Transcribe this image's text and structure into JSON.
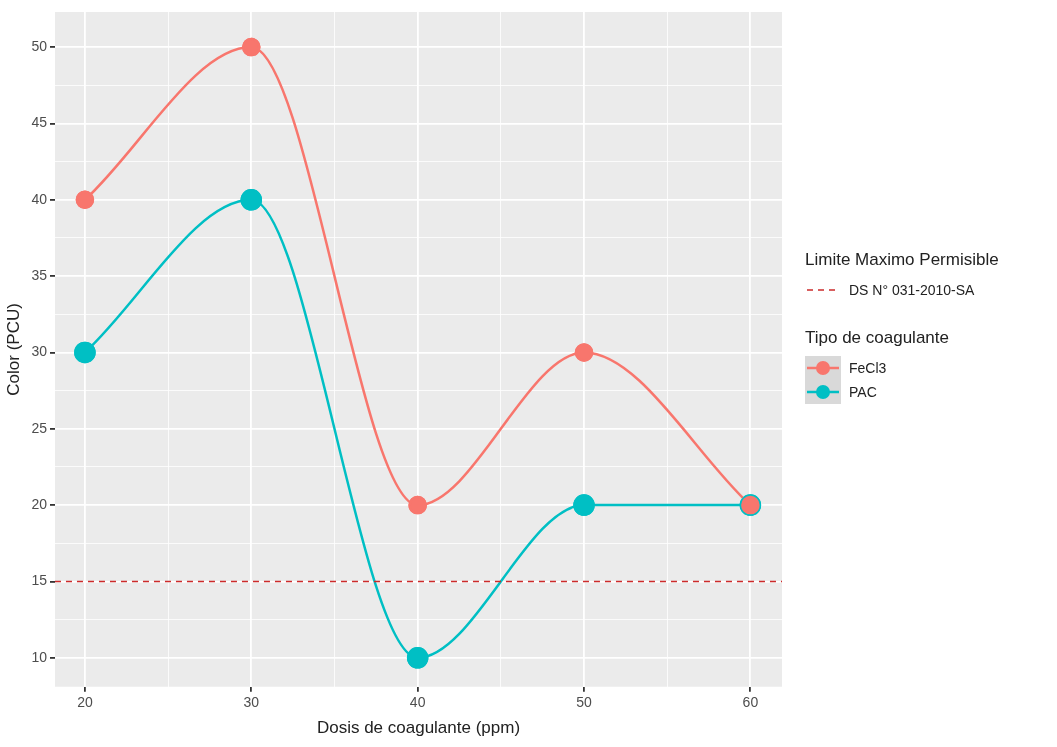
{
  "chart_data": {
    "type": "line",
    "xlabel": "Dosis de coagulante (ppm)",
    "ylabel": "Color (PCU)",
    "legend_title": "Tipo de coagulante",
    "x": [
      20,
      30,
      40,
      50,
      60
    ],
    "series": [
      {
        "name": "FeCl3",
        "color": "#f8766d",
        "values": [
          40,
          50,
          20,
          30,
          20
        ]
      },
      {
        "name": "PAC",
        "color": "#00bfc4",
        "values": [
          30,
          40,
          10,
          20,
          20
        ]
      }
    ],
    "xlim": [
      18.2,
      61.9
    ],
    "ylim": [
      8.1,
      52.3
    ],
    "xticks": [
      20,
      {
        "value": 25,
        "label": null
      },
      30,
      {
        "value": 35,
        "label": null
      },
      40,
      {
        "value": 45,
        "label": null
      },
      50,
      {
        "value": 55,
        "label": null
      },
      60
    ],
    "yticks": [
      10,
      {
        "value": 12.5,
        "label": null
      },
      15,
      {
        "value": 17.5,
        "label": null
      },
      20,
      {
        "value": 22.5,
        "label": null
      },
      25,
      {
        "value": 27.5,
        "label": null
      },
      30,
      {
        "value": 32.5,
        "label": null
      },
      35,
      {
        "value": 37.5,
        "label": null
      },
      40,
      {
        "value": 42.5,
        "label": null
      },
      45,
      {
        "value": 47.5,
        "label": null
      },
      50
    ],
    "ref_lines": [
      {
        "axis": "y",
        "value": 15,
        "label": "DS N° 031-2010-SA",
        "color": "#cc2b2b",
        "line_style": "dashed"
      }
    ],
    "annotations": [
      "Limite Maximo Permisible"
    ],
    "grid": true,
    "legend": "right",
    "marker": "circle",
    "line_style": "solid"
  }
}
